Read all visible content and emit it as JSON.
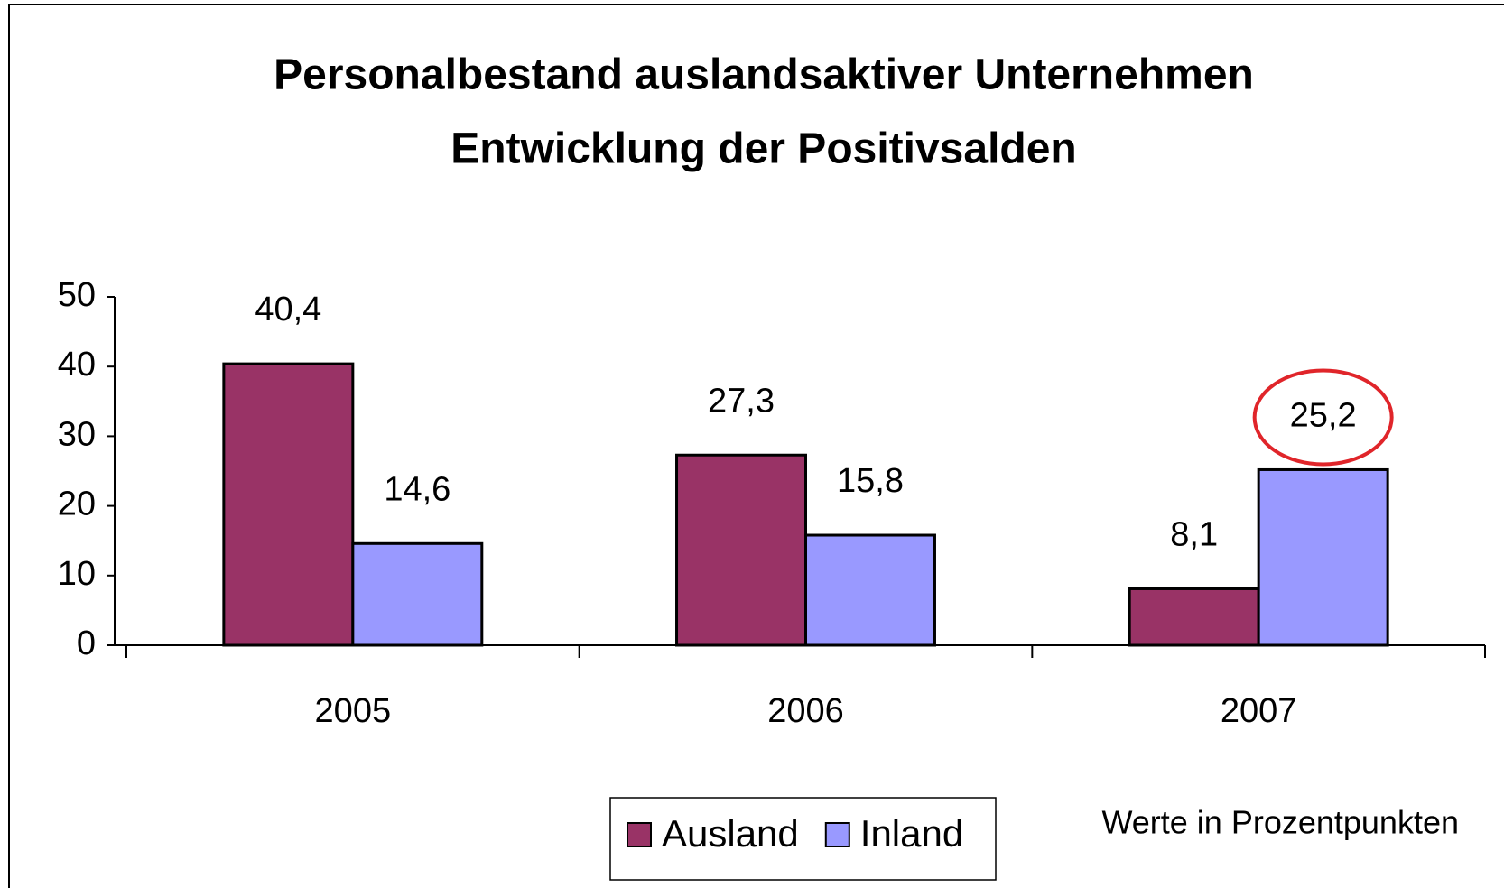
{
  "chart_data": {
    "type": "bar",
    "title": [
      "Personalbestand auslandsaktiver Unternehmen",
      "Entwicklung der Positivsalden"
    ],
    "categories": [
      "2005",
      "2006",
      "2007"
    ],
    "series": [
      {
        "name": "Ausland",
        "color": "#993366",
        "values": [
          40.4,
          27.3,
          8.1
        ],
        "value_labels": [
          "40,4",
          "27,3",
          "8,1"
        ]
      },
      {
        "name": "Inland",
        "color": "#9999ff",
        "values": [
          14.6,
          15.8,
          25.2
        ],
        "value_labels": [
          "14,6",
          "15,8",
          "25,2"
        ]
      }
    ],
    "ylim": [
      0,
      50
    ],
    "yticks": [
      0,
      10,
      20,
      30,
      40,
      50
    ],
    "annotation": "Werte in Prozentpunkten",
    "legend": "bottom"
  }
}
